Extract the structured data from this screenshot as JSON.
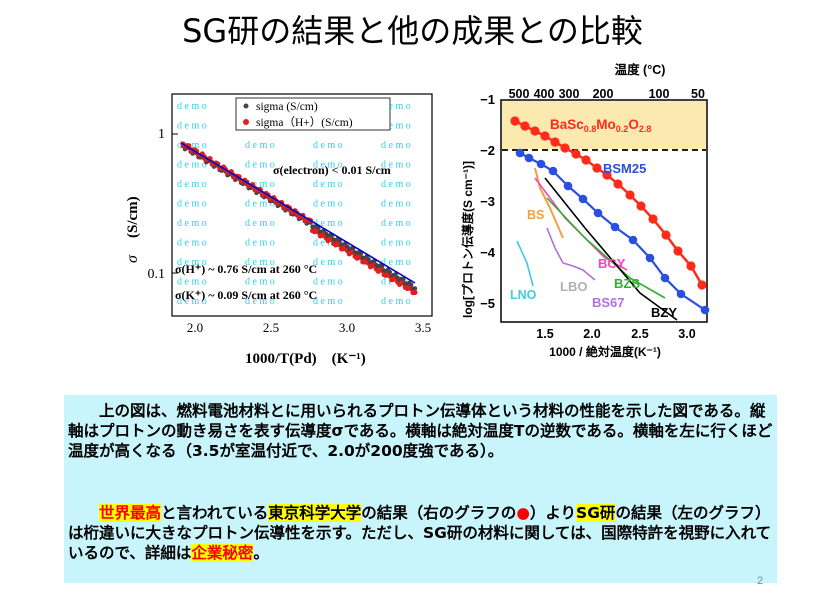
{
  "slide": {
    "title": "SG研の結果と他の成果との比較",
    "page_number": "2"
  },
  "left_chart": {
    "ylabel_sigma": "σ",
    "ylabel_unit": "(S/cm)",
    "xlabel": "1000/T(Pd)　(K⁻¹)",
    "xticks": [
      "2.0",
      "2.5",
      "3.0",
      "3.5"
    ],
    "yticks": [
      "1",
      "0.1"
    ],
    "watermark": "d e m o",
    "legend": [
      "sigma (S/cm)",
      "sigma（H+）(S/cm)"
    ],
    "annotation_electron": "σ(electron) < 0.01 S/cm",
    "annotation_h": "σ(H⁺) ~ 0.76 S/cm at 260 °C",
    "annotation_k": "σ(K⁺) ~ 0.09 S/cm at 260 °C",
    "colors": {
      "series1": "#444444",
      "series2": "#e02020",
      "fit": "#0000cc"
    }
  },
  "right_chart": {
    "top_axis_title": "温度 (°C)",
    "top_ticks": [
      "500",
      "400",
      "300",
      "200",
      "100",
      "50"
    ],
    "ylabel": "log[プロトン伝導度(S cm⁻¹)]",
    "yticks": [
      "−1",
      "−2",
      "−3",
      "−4",
      "−5"
    ],
    "xticks": [
      "1.5",
      "2.0",
      "2.5",
      "3.0"
    ],
    "xlabel": "1000 / 絶対温度(K⁻¹)",
    "labels": {
      "basc": "BaSc0.8Mo0.2O2.8",
      "bsm25": "BSM25",
      "bs": "BS",
      "bcy": "BCY",
      "bzs": "BZS",
      "lbo": "LBO",
      "lno": "LNO",
      "bs67": "BS67",
      "bzy": "BZY"
    },
    "colors": {
      "basc": "#ff2a1a",
      "bsm25": "#2a4fe0",
      "bs": "#f0a040",
      "bcy": "#ff40c0",
      "bzs": "#30b030",
      "lbo": "#b070e0",
      "lno": "#40c8e8",
      "bs67": "#b070e0",
      "bzy": "#000000",
      "highlight": "#fbe9b0"
    }
  },
  "text": {
    "p1": "上の図は、燃料電池材料とに用いられるプロトン伝導体という材料の性能を示した図である。縦軸はプロトンの動き易さを表す伝導度σである。横軸は絶対温度Tの逆数である。横軸を左に行くほど温度が高くなる（3.5が室温付近で、2.0が200度強である）。",
    "p2_a": "世界最高",
    "p2_b": "と言われている",
    "p2_c": "東京科学大学",
    "p2_d": "の結果（右のグラフの",
    "p2_dot": "●",
    "p2_e": "）より",
    "p2_f": "SG研",
    "p2_g": "の結果（左のグラフ）は桁違いに大きなプロトン伝導性を示す。ただし、SG研の材料に関しては、国際特許を視野に入れているので、詳細は",
    "p2_h": "企業秘密",
    "p2_i": "。"
  }
}
